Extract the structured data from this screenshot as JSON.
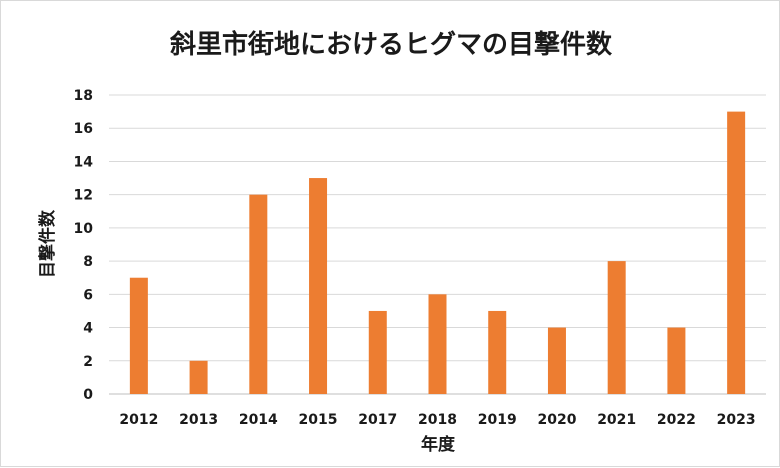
{
  "chart_data": {
    "type": "bar",
    "title": "斜里市街地におけるヒグマの目撃件数",
    "xlabel": "年度",
    "ylabel": "目撃件数",
    "categories": [
      "2012",
      "2013",
      "2014",
      "2015",
      "2017",
      "2018",
      "2019",
      "2020",
      "2021",
      "2022",
      "2023"
    ],
    "values": [
      7,
      2,
      12,
      13,
      5,
      6,
      5,
      4,
      8,
      4,
      17
    ],
    "ylim": [
      0,
      18
    ],
    "yticks": [
      0,
      2,
      4,
      6,
      8,
      10,
      12,
      14,
      16,
      18
    ],
    "grid": true,
    "legend": "none",
    "bar_color": "#ED7D31"
  }
}
